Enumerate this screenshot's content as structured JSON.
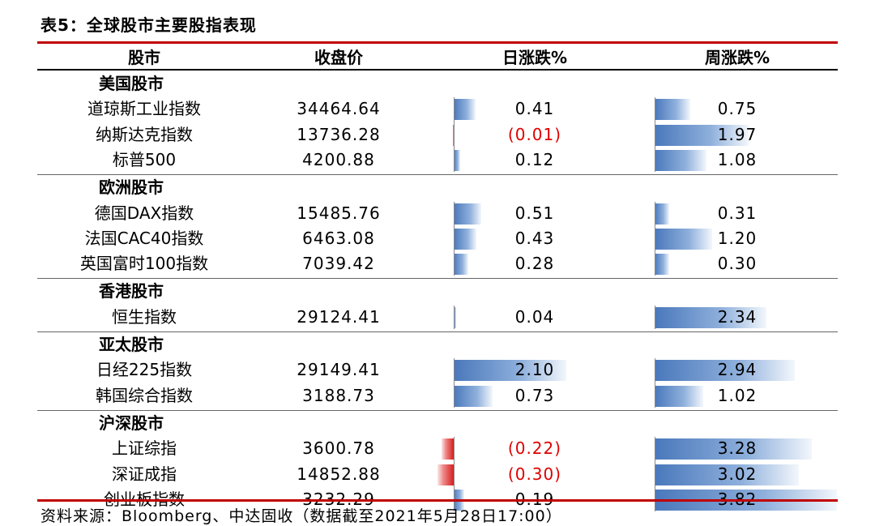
{
  "title": "表5：全球股市主要股指表现",
  "headers": {
    "market": "股市",
    "close": "收盘价",
    "daily": "日涨跌%",
    "weekly": "周涨跌%"
  },
  "colors": {
    "accent_red": "#c00000",
    "bar_positive": "#4a78bb",
    "bar_negative": "#d61f1f",
    "negative_text": "#e00000"
  },
  "groups": [
    {
      "label": "美国股市",
      "rows": [
        {
          "name": "道琼斯工业指数",
          "close": "34464.64",
          "daily": "0.41",
          "daily_value": 0.41,
          "weekly": "0.75",
          "weekly_value": 0.75
        },
        {
          "name": "纳斯达克指数",
          "close": "13736.28",
          "daily": "(0.01)",
          "daily_value": -0.01,
          "weekly": "1.97",
          "weekly_value": 1.97
        },
        {
          "name": "标普500",
          "close": "4200.88",
          "daily": "0.12",
          "daily_value": 0.12,
          "weekly": "1.08",
          "weekly_value": 1.08
        }
      ]
    },
    {
      "label": "欧洲股市",
      "rows": [
        {
          "name": "德国DAX指数",
          "close": "15485.76",
          "daily": "0.51",
          "daily_value": 0.51,
          "weekly": "0.31",
          "weekly_value": 0.31
        },
        {
          "name": "法国CAC40指数",
          "close": "6463.08",
          "daily": "0.43",
          "daily_value": 0.43,
          "weekly": "1.20",
          "weekly_value": 1.2
        },
        {
          "name": "英国富时100指数",
          "close": "7039.42",
          "daily": "0.28",
          "daily_value": 0.28,
          "weekly": "0.30",
          "weekly_value": 0.3
        }
      ]
    },
    {
      "label": "香港股市",
      "rows": [
        {
          "name": "恒生指数",
          "close": "29124.41",
          "daily": "0.04",
          "daily_value": 0.04,
          "weekly": "2.34",
          "weekly_value": 2.34
        }
      ]
    },
    {
      "label": "亚太股市",
      "rows": [
        {
          "name": "日经225指数",
          "close": "29149.41",
          "daily": "2.10",
          "daily_value": 2.1,
          "weekly": "2.94",
          "weekly_value": 2.94
        },
        {
          "name": "韩国综合指数",
          "close": "3188.73",
          "daily": "0.73",
          "daily_value": 0.73,
          "weekly": "1.02",
          "weekly_value": 1.02
        }
      ]
    },
    {
      "label": "沪深股市",
      "rows": [
        {
          "name": "上证综指",
          "close": "3600.78",
          "daily": "(0.22)",
          "daily_value": -0.22,
          "weekly": "3.28",
          "weekly_value": 3.28
        },
        {
          "name": "深证成指",
          "close": "14852.88",
          "daily": "(0.30)",
          "daily_value": -0.3,
          "weekly": "3.02",
          "weekly_value": 3.02
        },
        {
          "name": "创业板指数",
          "close": "3232.29",
          "daily": "0.19",
          "daily_value": 0.19,
          "weekly": "3.82",
          "weekly_value": 3.82
        }
      ]
    }
  ],
  "source": "资料来源：Bloomberg、中达固收（数据截至2021年5月28日17:00）"
}
